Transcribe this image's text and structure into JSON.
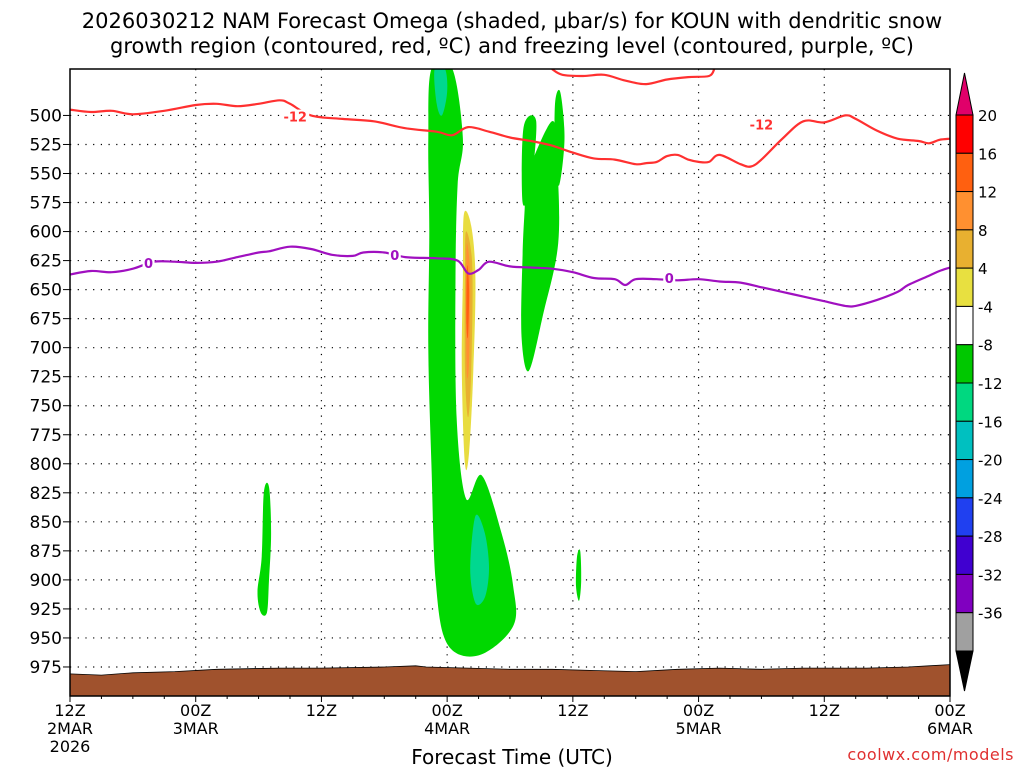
{
  "title_line1": "2026030212 NAM Forecast Omega (shaded, μbar/s) for KOUN with dendritic snow",
  "title_line2": "growth region (contoured, red, ºC) and freezing level (contoured, purple, ºC)",
  "credit": "coolwx.com/models",
  "chart_data": {
    "type": "heatmap",
    "xlabel": "Forecast Time (UTC)",
    "ylabel": "",
    "x_units": "forecast hours from 2026-03-02 12Z",
    "xlim": [
      0,
      84
    ],
    "ylim": [
      1000,
      460
    ],
    "x_ticks": [
      {
        "hour": 0,
        "lines": [
          "12Z",
          "2MAR",
          "2026"
        ]
      },
      {
        "hour": 12,
        "lines": [
          "00Z",
          "3MAR"
        ]
      },
      {
        "hour": 24,
        "lines": [
          "12Z"
        ]
      },
      {
        "hour": 36,
        "lines": [
          "00Z",
          "4MAR"
        ]
      },
      {
        "hour": 48,
        "lines": [
          "12Z"
        ]
      },
      {
        "hour": 60,
        "lines": [
          "00Z",
          "5MAR"
        ]
      },
      {
        "hour": 72,
        "lines": [
          "12Z"
        ]
      },
      {
        "hour": 84,
        "lines": [
          "00Z",
          "6MAR"
        ]
      }
    ],
    "y_ticks": [
      500,
      525,
      550,
      575,
      600,
      625,
      650,
      675,
      700,
      725,
      750,
      775,
      800,
      825,
      850,
      875,
      900,
      925,
      950,
      975
    ],
    "grid": true,
    "colorbar": {
      "labels": [
        "20",
        "16",
        "12",
        "8",
        "4",
        "-4",
        "-8",
        "-12",
        "-16",
        "-20",
        "-24",
        "-28",
        "-32",
        "-36"
      ],
      "colors": [
        "#ff0000",
        "#ff6010",
        "#ff9030",
        "#e8b030",
        "#e8e040",
        "#ffffff",
        "#00c800",
        "#00d880",
        "#00c0c0",
        "#00a0e0",
        "#2040f0",
        "#4000d0",
        "#8000c0",
        "#a0a0a0"
      ],
      "top_arrow_color": "#e0006a",
      "bottom_arrow_color": "#000000"
    },
    "omega_regions": [
      {
        "level": -8,
        "color": "#00d800",
        "pts": [
          [
            34.5,
            460
          ],
          [
            36.5,
            460
          ],
          [
            37.5,
            520
          ],
          [
            37.0,
            560
          ],
          [
            36.8,
            640
          ],
          [
            36.9,
            760
          ],
          [
            37.8,
            830
          ],
          [
            39.3,
            810
          ],
          [
            41.2,
            860
          ],
          [
            42.3,
            905
          ],
          [
            42.3,
            940
          ],
          [
            39.0,
            965
          ],
          [
            36.0,
            955
          ],
          [
            34.9,
            900
          ],
          [
            34.5,
            800
          ],
          [
            34.2,
            700
          ],
          [
            34.3,
            600
          ],
          [
            34.2,
            520
          ]
        ]
      },
      {
        "level": -12,
        "color": "#00d890",
        "pts": [
          [
            34.8,
            460
          ],
          [
            35.8,
            460
          ],
          [
            36.0,
            480
          ],
          [
            35.5,
            500
          ],
          [
            35.0,
            490
          ]
        ]
      },
      {
        "level": -12,
        "color": "#00d890",
        "pts": [
          [
            38.7,
            845
          ],
          [
            39.6,
            860
          ],
          [
            40.0,
            890
          ],
          [
            39.6,
            915
          ],
          [
            38.7,
            920
          ],
          [
            38.2,
            890
          ]
        ]
      },
      {
        "level": -8,
        "color": "#00d800",
        "pts": [
          [
            43.5,
            555
          ],
          [
            46.0,
            505
          ],
          [
            46.5,
            540
          ],
          [
            46.6,
            610
          ],
          [
            45.2,
            670
          ],
          [
            43.8,
            720
          ],
          [
            43.1,
            690
          ],
          [
            43.2,
            620
          ],
          [
            43.4,
            580
          ]
        ]
      },
      {
        "level": -8,
        "color": "#00d800",
        "pts": [
          [
            43.3,
            510
          ],
          [
            44.5,
            505
          ],
          [
            44.0,
            560
          ],
          [
            43.2,
            575
          ]
        ]
      },
      {
        "level": -8,
        "color": "#00d800",
        "pts": [
          [
            46.3,
            490
          ],
          [
            46.8,
            480
          ],
          [
            47.2,
            520
          ],
          [
            46.7,
            560
          ],
          [
            46.3,
            540
          ]
        ]
      },
      {
        "level": -8,
        "color": "#00d800",
        "pts": [
          [
            18.5,
            825
          ],
          [
            19.0,
            820
          ],
          [
            19.2,
            860
          ],
          [
            19.0,
            900
          ],
          [
            18.8,
            928
          ],
          [
            18.2,
            928
          ],
          [
            17.9,
            910
          ],
          [
            18.3,
            880
          ]
        ]
      },
      {
        "level": -8,
        "color": "#00d800",
        "pts": [
          [
            48.4,
            880
          ],
          [
            48.7,
            875
          ],
          [
            48.8,
            900
          ],
          [
            48.6,
            918
          ],
          [
            48.3,
            905
          ]
        ]
      },
      {
        "level": 4,
        "color": "#e8dc40",
        "pts": [
          [
            37.6,
            585
          ],
          [
            38.3,
            595
          ],
          [
            38.7,
            640
          ],
          [
            38.5,
            720
          ],
          [
            38.1,
            790
          ],
          [
            37.7,
            800
          ],
          [
            37.4,
            720
          ],
          [
            37.5,
            640
          ]
        ]
      },
      {
        "level": 8,
        "color": "#e8b030",
        "pts": [
          [
            37.8,
            600
          ],
          [
            38.4,
            630
          ],
          [
            38.3,
            720
          ],
          [
            38.0,
            760
          ],
          [
            37.7,
            720
          ],
          [
            37.7,
            640
          ]
        ]
      },
      {
        "level": 12,
        "color": "#ff9030",
        "pts": [
          [
            37.9,
            610
          ],
          [
            38.2,
            640
          ],
          [
            38.1,
            710
          ],
          [
            37.9,
            725
          ],
          [
            37.8,
            680
          ],
          [
            37.8,
            640
          ]
        ]
      },
      {
        "level": 16,
        "color": "#ff6010",
        "pts": [
          [
            37.9,
            630
          ],
          [
            38.1,
            650
          ],
          [
            38.0,
            690
          ],
          [
            37.85,
            680
          ]
        ]
      }
    ],
    "series": [
      {
        "value": -12,
        "color": "#ff3030",
        "label": "-12",
        "points": [
          [
            0,
            495
          ],
          [
            2,
            497
          ],
          [
            4,
            496
          ],
          [
            6,
            499
          ],
          [
            9,
            496
          ],
          [
            12,
            491
          ],
          [
            14,
            490
          ],
          [
            16,
            492
          ],
          [
            18,
            490
          ],
          [
            20,
            487
          ],
          [
            21,
            490
          ],
          [
            23,
            500
          ],
          [
            26,
            503
          ],
          [
            29,
            505
          ],
          [
            32,
            511
          ],
          [
            35,
            514
          ],
          [
            36.5,
            517
          ],
          [
            38,
            510
          ],
          [
            40,
            514
          ],
          [
            42,
            519
          ],
          [
            44,
            522
          ],
          [
            46,
            526
          ],
          [
            48,
            532
          ],
          [
            50,
            537
          ],
          [
            52,
            538
          ],
          [
            54,
            542
          ],
          [
            55,
            541
          ],
          [
            56,
            540
          ],
          [
            57,
            535
          ],
          [
            58,
            534
          ],
          [
            59,
            538
          ],
          [
            60,
            540
          ],
          [
            61,
            540
          ],
          [
            62,
            534
          ],
          [
            64,
            542
          ],
          [
            65,
            544
          ],
          [
            66,
            538
          ],
          [
            68,
            520
          ],
          [
            70,
            505
          ],
          [
            72,
            506
          ],
          [
            74,
            500
          ],
          [
            75,
            503
          ],
          [
            77,
            513
          ],
          [
            79,
            520
          ],
          [
            81,
            522
          ],
          [
            82,
            524
          ],
          [
            83,
            521
          ],
          [
            84,
            520
          ]
        ]
      },
      {
        "value": -12,
        "color": "#ff3030",
        "label": "",
        "points": [
          [
            46.0,
            460
          ],
          [
            47.0,
            465
          ],
          [
            49,
            466
          ],
          [
            51,
            465
          ],
          [
            53,
            470
          ],
          [
            55,
            473
          ],
          [
            57,
            469
          ],
          [
            59,
            467
          ],
          [
            61,
            466
          ],
          [
            61.5,
            460
          ]
        ]
      },
      {
        "value": 0,
        "color": "#a010c0",
        "label": "0",
        "points": [
          [
            0,
            637
          ],
          [
            2,
            634
          ],
          [
            4,
            635
          ],
          [
            6,
            632
          ],
          [
            8,
            626
          ],
          [
            10,
            626
          ],
          [
            12,
            627
          ],
          [
            14,
            626
          ],
          [
            16,
            622
          ],
          [
            18,
            618
          ],
          [
            19,
            617
          ],
          [
            21,
            613
          ],
          [
            23,
            615
          ],
          [
            25,
            620
          ],
          [
            27,
            621
          ],
          [
            28,
            618
          ],
          [
            30,
            618
          ],
          [
            32,
            622
          ],
          [
            35,
            623
          ],
          [
            37,
            625
          ],
          [
            38,
            636
          ],
          [
            39,
            633
          ],
          [
            40,
            626
          ],
          [
            42,
            630
          ],
          [
            44,
            631
          ],
          [
            46,
            632
          ],
          [
            48,
            635
          ],
          [
            50,
            640
          ],
          [
            52,
            641
          ],
          [
            53,
            646
          ],
          [
            54,
            641
          ],
          [
            56,
            641
          ],
          [
            58,
            642
          ],
          [
            60,
            641
          ],
          [
            62,
            643
          ],
          [
            64,
            644
          ],
          [
            66,
            648
          ],
          [
            68,
            652
          ],
          [
            70,
            656
          ],
          [
            72,
            660
          ],
          [
            74,
            664
          ],
          [
            75,
            664
          ],
          [
            77,
            659
          ],
          [
            79,
            652
          ],
          [
            80,
            646
          ],
          [
            82,
            638
          ],
          [
            83,
            634
          ],
          [
            84,
            631
          ]
        ]
      }
    ],
    "contour_labels": [
      {
        "text": "-12",
        "hour": 21.5,
        "pressure": 501,
        "color": "#ff3030"
      },
      {
        "text": "-12",
        "hour": 66.0,
        "pressure": 508,
        "color": "#ff3030"
      },
      {
        "text": "0",
        "hour": 7.5,
        "pressure": 627,
        "color": "#a010c0"
      },
      {
        "text": "0",
        "hour": 31.0,
        "pressure": 620,
        "color": "#a010c0"
      },
      {
        "text": "0",
        "hour": 57.2,
        "pressure": 640,
        "color": "#a010c0"
      }
    ],
    "ground": {
      "color": "#a0522d",
      "points": [
        [
          0,
          981
        ],
        [
          3,
          982
        ],
        [
          6,
          980
        ],
        [
          10,
          979
        ],
        [
          14,
          977
        ],
        [
          20,
          976
        ],
        [
          24,
          976
        ],
        [
          30,
          975
        ],
        [
          33,
          974
        ],
        [
          34,
          975
        ],
        [
          38,
          976
        ],
        [
          42,
          977
        ],
        [
          46,
          977
        ],
        [
          50,
          978
        ],
        [
          54,
          979
        ],
        [
          58,
          977
        ],
        [
          62,
          976
        ],
        [
          66,
          977
        ],
        [
          70,
          976
        ],
        [
          76,
          976
        ],
        [
          80,
          975
        ],
        [
          82,
          974
        ],
        [
          84,
          973
        ]
      ]
    }
  }
}
